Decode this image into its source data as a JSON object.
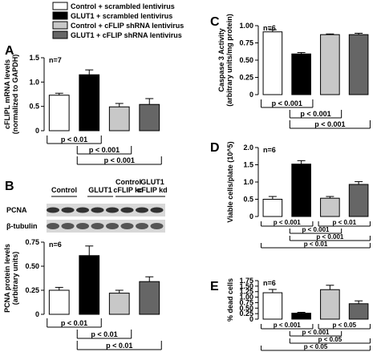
{
  "legend": [
    {
      "name": "Control + scrambled lentivirus",
      "color": "#ffffff"
    },
    {
      "name": "GLUT1 + scrambled lentivirus",
      "color": "#000000"
    },
    {
      "name": "Control + cFLIP shRNA lentivirus",
      "color": "#c8c8c8"
    },
    {
      "name": "GLUT1 + cFLIP shRNA lentivirus",
      "color": "#666666"
    }
  ],
  "blot": {
    "lanes": [
      [
        "Control"
      ],
      [
        "GLUT1"
      ],
      [
        "Control",
        "cFLIP kd"
      ],
      [
        "GLUT1",
        "cFLIP kd"
      ]
    ],
    "rows": [
      "PCNA",
      "β-tubulin"
    ]
  },
  "chart_data": [
    {
      "type": "bar",
      "panel_label": "A",
      "n_label": "n=7",
      "ylabel": [
        "cFLIPL mRNA levels",
        "(normalized to GAPDH)"
      ],
      "values": [
        0.73,
        1.15,
        0.49,
        0.54
      ],
      "errors": [
        0.04,
        0.1,
        0.07,
        0.12
      ],
      "ylim": [
        0,
        1.5
      ],
      "yticks": [
        0,
        0.5,
        {
          "value": 1,
          "label": "1.0"
        },
        1.5
      ],
      "comparisons": [
        {
          "text": "p < 0.01",
          "span": [
            0,
            1
          ]
        },
        {
          "text": "p < 0.001",
          "span": [
            1,
            2
          ]
        },
        {
          "text": "p < 0.001",
          "span": [
            1,
            3
          ]
        }
      ]
    },
    {
      "type": "bar",
      "panel_label": "B",
      "n_label": "n=6",
      "ylabel": [
        "PCNA protein levels",
        "(arbitrary units)"
      ],
      "values": [
        0.25,
        0.61,
        0.22,
        0.34
      ],
      "errors": [
        0.03,
        0.1,
        0.03,
        0.05
      ],
      "ylim": [
        0,
        0.75
      ],
      "yticks": [
        0,
        0.25,
        {
          "value": 0.5,
          "label": "0.50"
        },
        0.75
      ],
      "comparisons": [
        {
          "text": "p < 0.01",
          "span": [
            0,
            1
          ]
        },
        {
          "text": "p < 0.01",
          "span": [
            1,
            2
          ]
        },
        {
          "text": "p < 0.01",
          "span": [
            1,
            3
          ]
        }
      ]
    },
    {
      "type": "bar",
      "panel_label": "C",
      "n_label": "n=6",
      "ylabel": [
        "Caspase 3 Activity",
        "(arbitrary units/mg protein)"
      ],
      "values": [
        0.91,
        0.59,
        0.87,
        0.87
      ],
      "errors": [
        0.03,
        0.02,
        0.01,
        0.02
      ],
      "ylim": [
        0,
        1
      ],
      "yticks": [
        0,
        0.25,
        {
          "value": 0.5,
          "label": "0.50"
        },
        0.75,
        {
          "value": 1,
          "label": "1.00"
        }
      ],
      "comparisons": [
        {
          "text": "p < 0.001",
          "span": [
            0,
            1
          ]
        },
        {
          "text": "p < 0.001",
          "span": [
            1,
            2
          ]
        },
        {
          "text": "p < 0.001",
          "span": [
            1,
            3
          ]
        }
      ]
    },
    {
      "type": "bar",
      "panel_label": "D",
      "n_label": "n=6",
      "ylabel": [
        "Viable cells/plate (10^5)"
      ],
      "values": [
        0.5,
        1.52,
        0.53,
        0.93
      ],
      "errors": [
        0.08,
        0.1,
        0.05,
        0.08
      ],
      "ylim": [
        0,
        2
      ],
      "yticks": [
        0,
        0.5,
        {
          "value": 1,
          "label": "1.0"
        },
        1.5,
        {
          "value": 2,
          "label": "2.0"
        }
      ],
      "comparisons": [
        {
          "text": "p < 0.001",
          "span": [
            0,
            1
          ]
        },
        {
          "text": "p < 0.01",
          "span": [
            2,
            3
          ]
        },
        {
          "text": "p < 0.001",
          "span": [
            1,
            2
          ]
        },
        {
          "text": "p < 0.001",
          "span": [
            1,
            3
          ]
        },
        {
          "text": "p < 0.01",
          "span": [
            0,
            3
          ]
        }
      ]
    },
    {
      "type": "bar",
      "panel_label": "E",
      "n_label": "n=6",
      "ylabel": [
        "% dead cells"
      ],
      "values": [
        1.2,
        0.27,
        1.34,
        0.7
      ],
      "errors": [
        0.15,
        0.04,
        0.2,
        0.13
      ],
      "ylim": [
        0,
        1.75
      ],
      "yticks": [
        0,
        0.25,
        {
          "value": 0.5,
          "label": "0.50"
        },
        0.75,
        {
          "value": 1,
          "label": "1.00"
        },
        1.25,
        {
          "value": 1.5,
          "label": "1.50"
        },
        1.75
      ],
      "comparisons": [
        {
          "text": "p < 0.001",
          "span": [
            0,
            1
          ]
        },
        {
          "text": "p < 0.05",
          "span": [
            2,
            3
          ]
        },
        {
          "text": "p < 0.001",
          "span": [
            1,
            2
          ]
        },
        {
          "text": "p < 0.05",
          "span": [
            1,
            3
          ]
        },
        {
          "text": "p < 0.05",
          "span": [
            0,
            3
          ]
        }
      ]
    }
  ]
}
